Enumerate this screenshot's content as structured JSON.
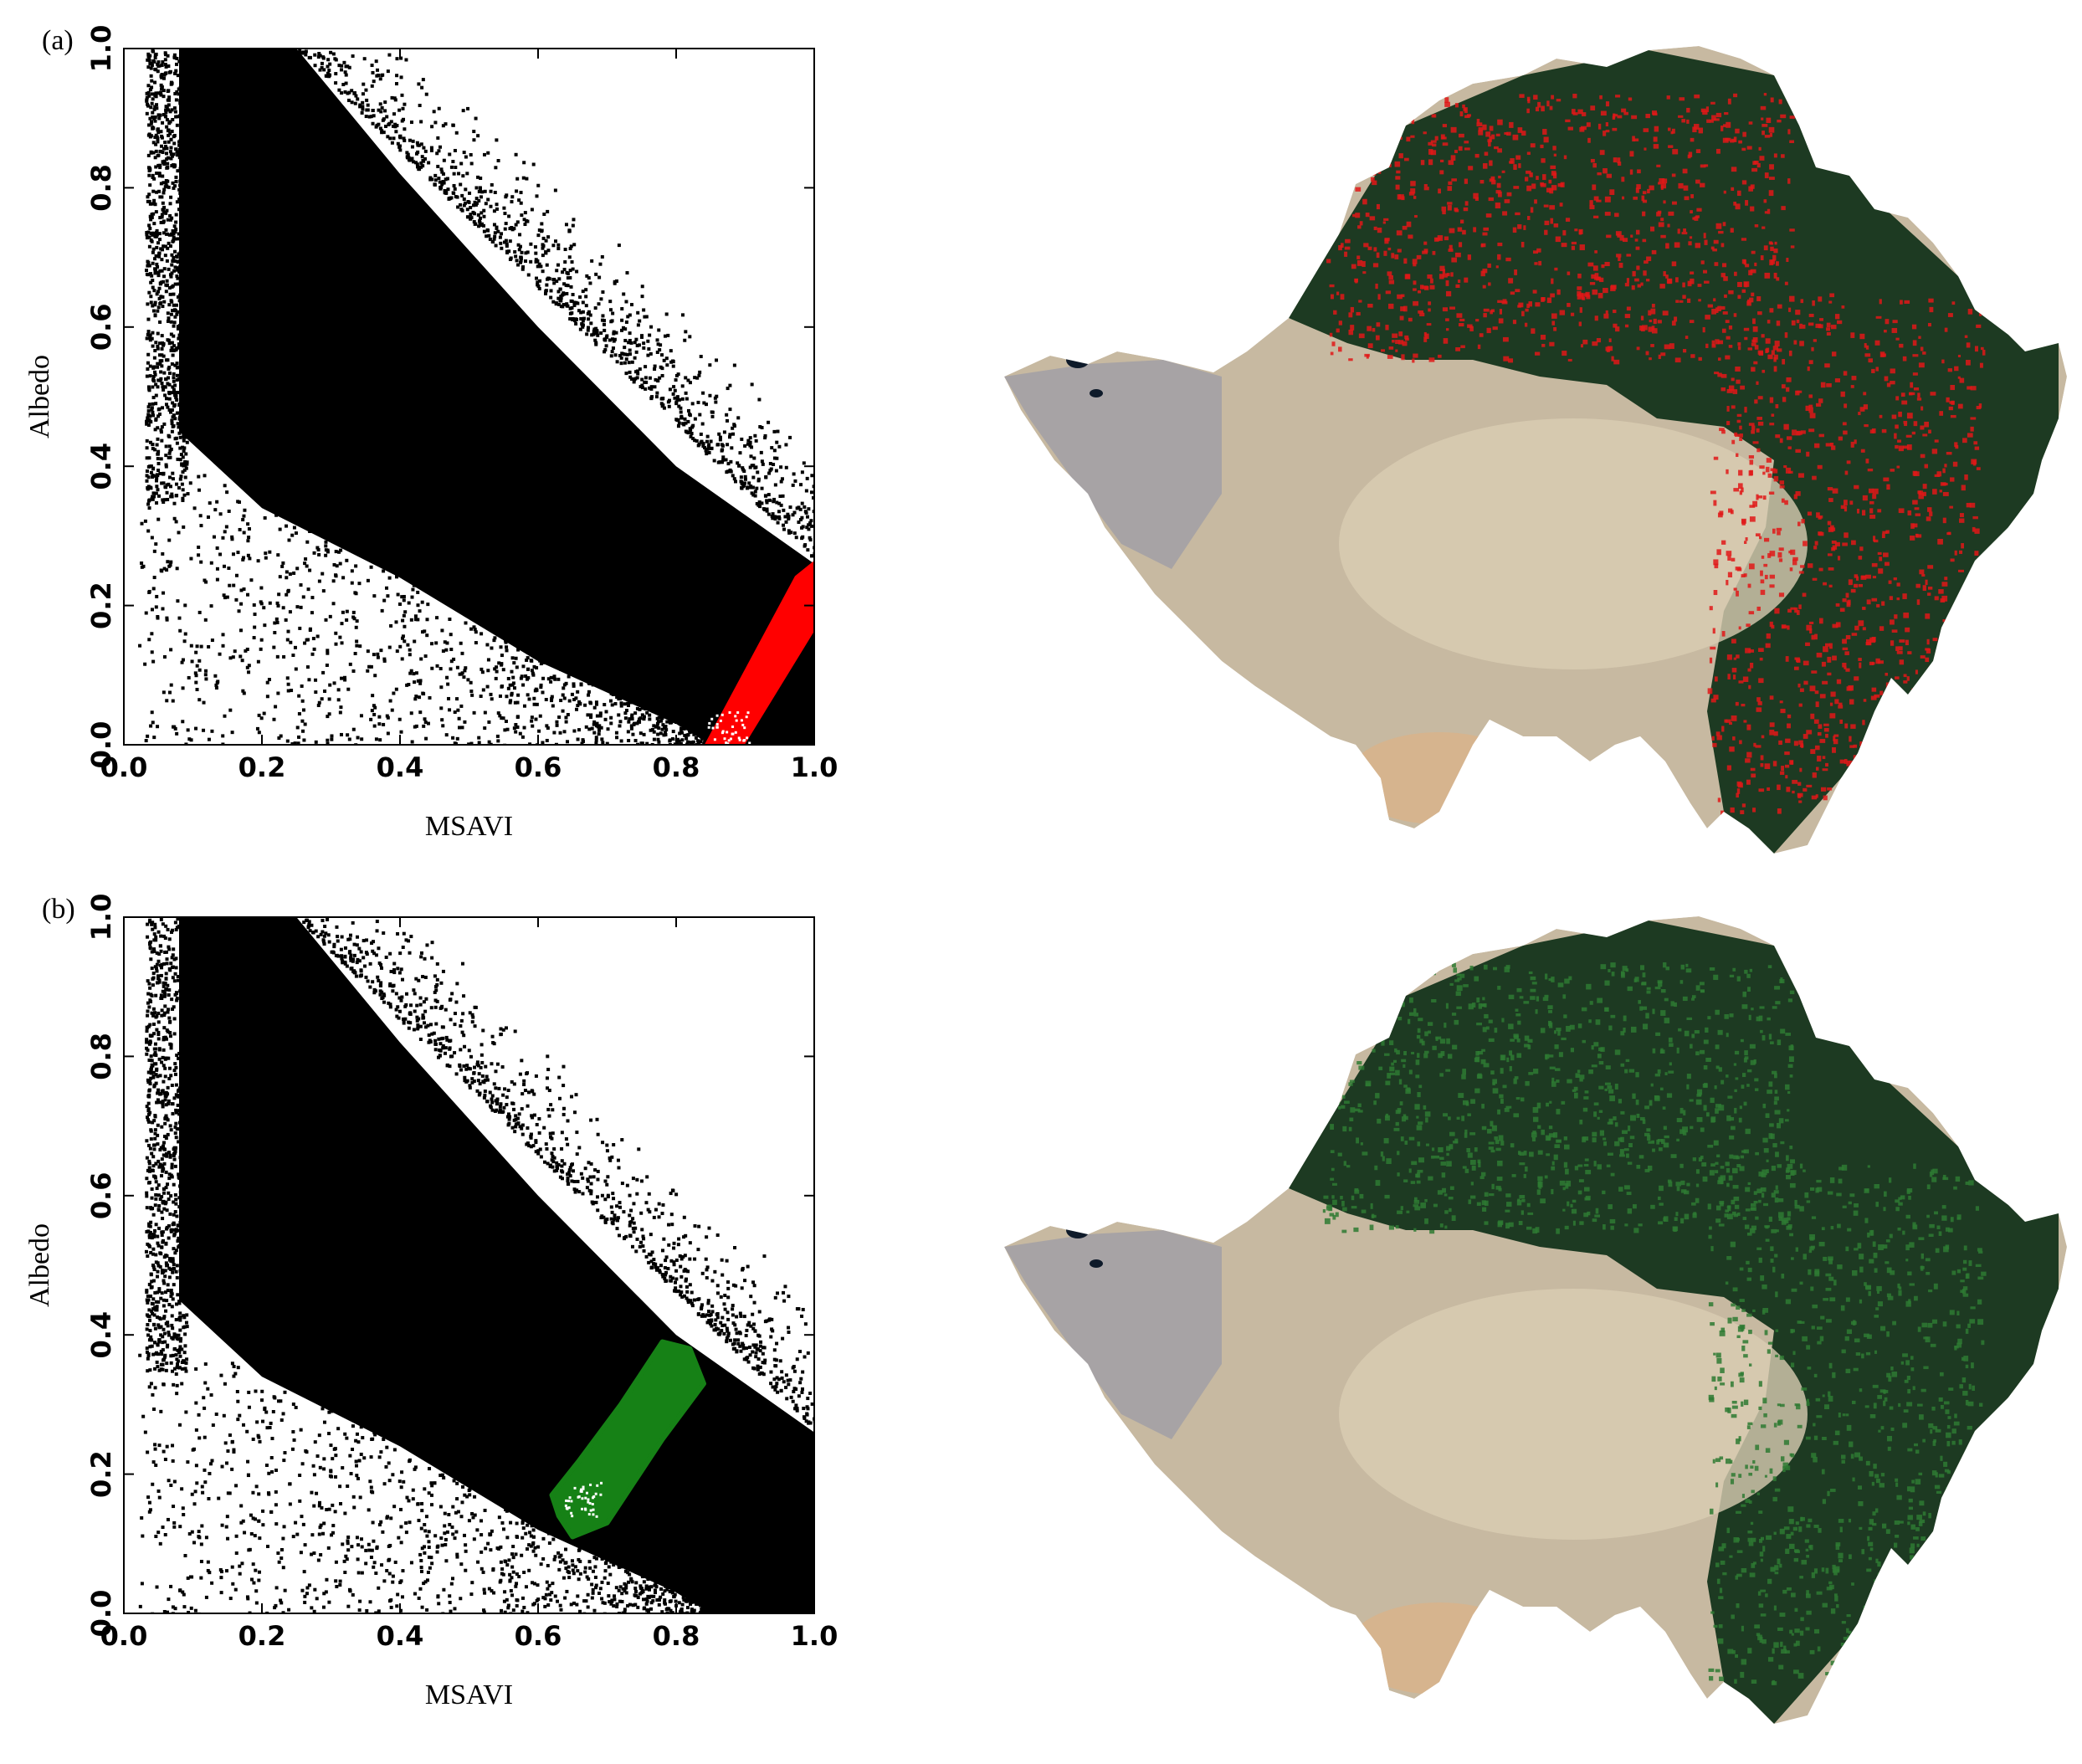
{
  "panels": [
    {
      "label": "(a)",
      "highlight_color": "#ff0000",
      "chart_data": {
        "type": "scatter",
        "title": "",
        "xlabel": "MSAVI",
        "ylabel": "Albedo",
        "xlim": [
          0.0,
          1.0
        ],
        "ylim": [
          0.0,
          1.0
        ],
        "xticks": [
          "0.0",
          "0.2",
          "0.4",
          "0.6",
          "0.8",
          "1.0"
        ],
        "yticks": [
          "0.0",
          "0.2",
          "0.4",
          "0.6",
          "0.8",
          "1.0"
        ],
        "grid": false,
        "point_cloud": {
          "color": "#000000",
          "upper_boundary": [
            [
              0.09,
              1.0
            ],
            [
              0.25,
              1.0
            ],
            [
              0.4,
              0.82
            ],
            [
              0.6,
              0.6
            ],
            [
              0.8,
              0.4
            ],
            [
              1.0,
              0.26
            ]
          ],
          "lower_boundary": [
            [
              0.08,
              1.0
            ],
            [
              0.08,
              0.45
            ],
            [
              0.2,
              0.34
            ],
            [
              0.4,
              0.24
            ],
            [
              0.6,
              0.12
            ],
            [
              0.8,
              0.03
            ],
            [
              0.85,
              0.0
            ],
            [
              1.0,
              0.0
            ]
          ]
        },
        "series": [
          {
            "color": "#ff0000",
            "region": [
              [
                0.845,
                0.0
              ],
              [
                0.895,
                0.0
              ],
              [
                1.0,
                0.17
              ],
              [
                1.0,
                0.26
              ],
              [
                0.975,
                0.24
              ]
            ]
          }
        ]
      }
    },
    {
      "label": "(b)",
      "highlight_color": "#168116",
      "chart_data": {
        "type": "scatter",
        "title": "",
        "xlabel": "MSAVI",
        "ylabel": "Albedo",
        "xlim": [
          0.0,
          1.0
        ],
        "ylim": [
          0.0,
          1.0
        ],
        "xticks": [
          "0.0",
          "0.2",
          "0.4",
          "0.6",
          "0.8",
          "1.0"
        ],
        "yticks": [
          "0.0",
          "0.2",
          "0.4",
          "0.6",
          "0.8",
          "1.0"
        ],
        "grid": false,
        "point_cloud": {
          "color": "#000000",
          "upper_boundary": [
            [
              0.09,
              1.0
            ],
            [
              0.25,
              1.0
            ],
            [
              0.4,
              0.82
            ],
            [
              0.6,
              0.6
            ],
            [
              0.8,
              0.4
            ],
            [
              1.0,
              0.26
            ]
          ],
          "lower_boundary": [
            [
              0.08,
              1.0
            ],
            [
              0.08,
              0.45
            ],
            [
              0.2,
              0.34
            ],
            [
              0.4,
              0.24
            ],
            [
              0.6,
              0.12
            ],
            [
              0.8,
              0.03
            ],
            [
              0.85,
              0.0
            ],
            [
              1.0,
              0.0
            ]
          ]
        },
        "series": [
          {
            "color": "#168116",
            "region": [
              [
                0.63,
                0.14
              ],
              [
                0.65,
                0.11
              ],
              [
                0.7,
                0.13
              ],
              [
                0.78,
                0.25
              ],
              [
                0.84,
                0.33
              ],
              [
                0.82,
                0.38
              ],
              [
                0.78,
                0.39
              ],
              [
                0.72,
                0.3
              ],
              [
                0.66,
                0.22
              ],
              [
                0.62,
                0.17
              ]
            ]
          }
        ]
      }
    }
  ],
  "maps": [
    {
      "name": "map-a",
      "overlay_color": "#e01818",
      "base_desert": "#c7b9a1",
      "base_forest": "#1d3a22"
    },
    {
      "name": "map-b",
      "overlay_color": "#2e7a32",
      "base_desert": "#c7b9a1",
      "base_forest": "#1d3a22"
    }
  ]
}
